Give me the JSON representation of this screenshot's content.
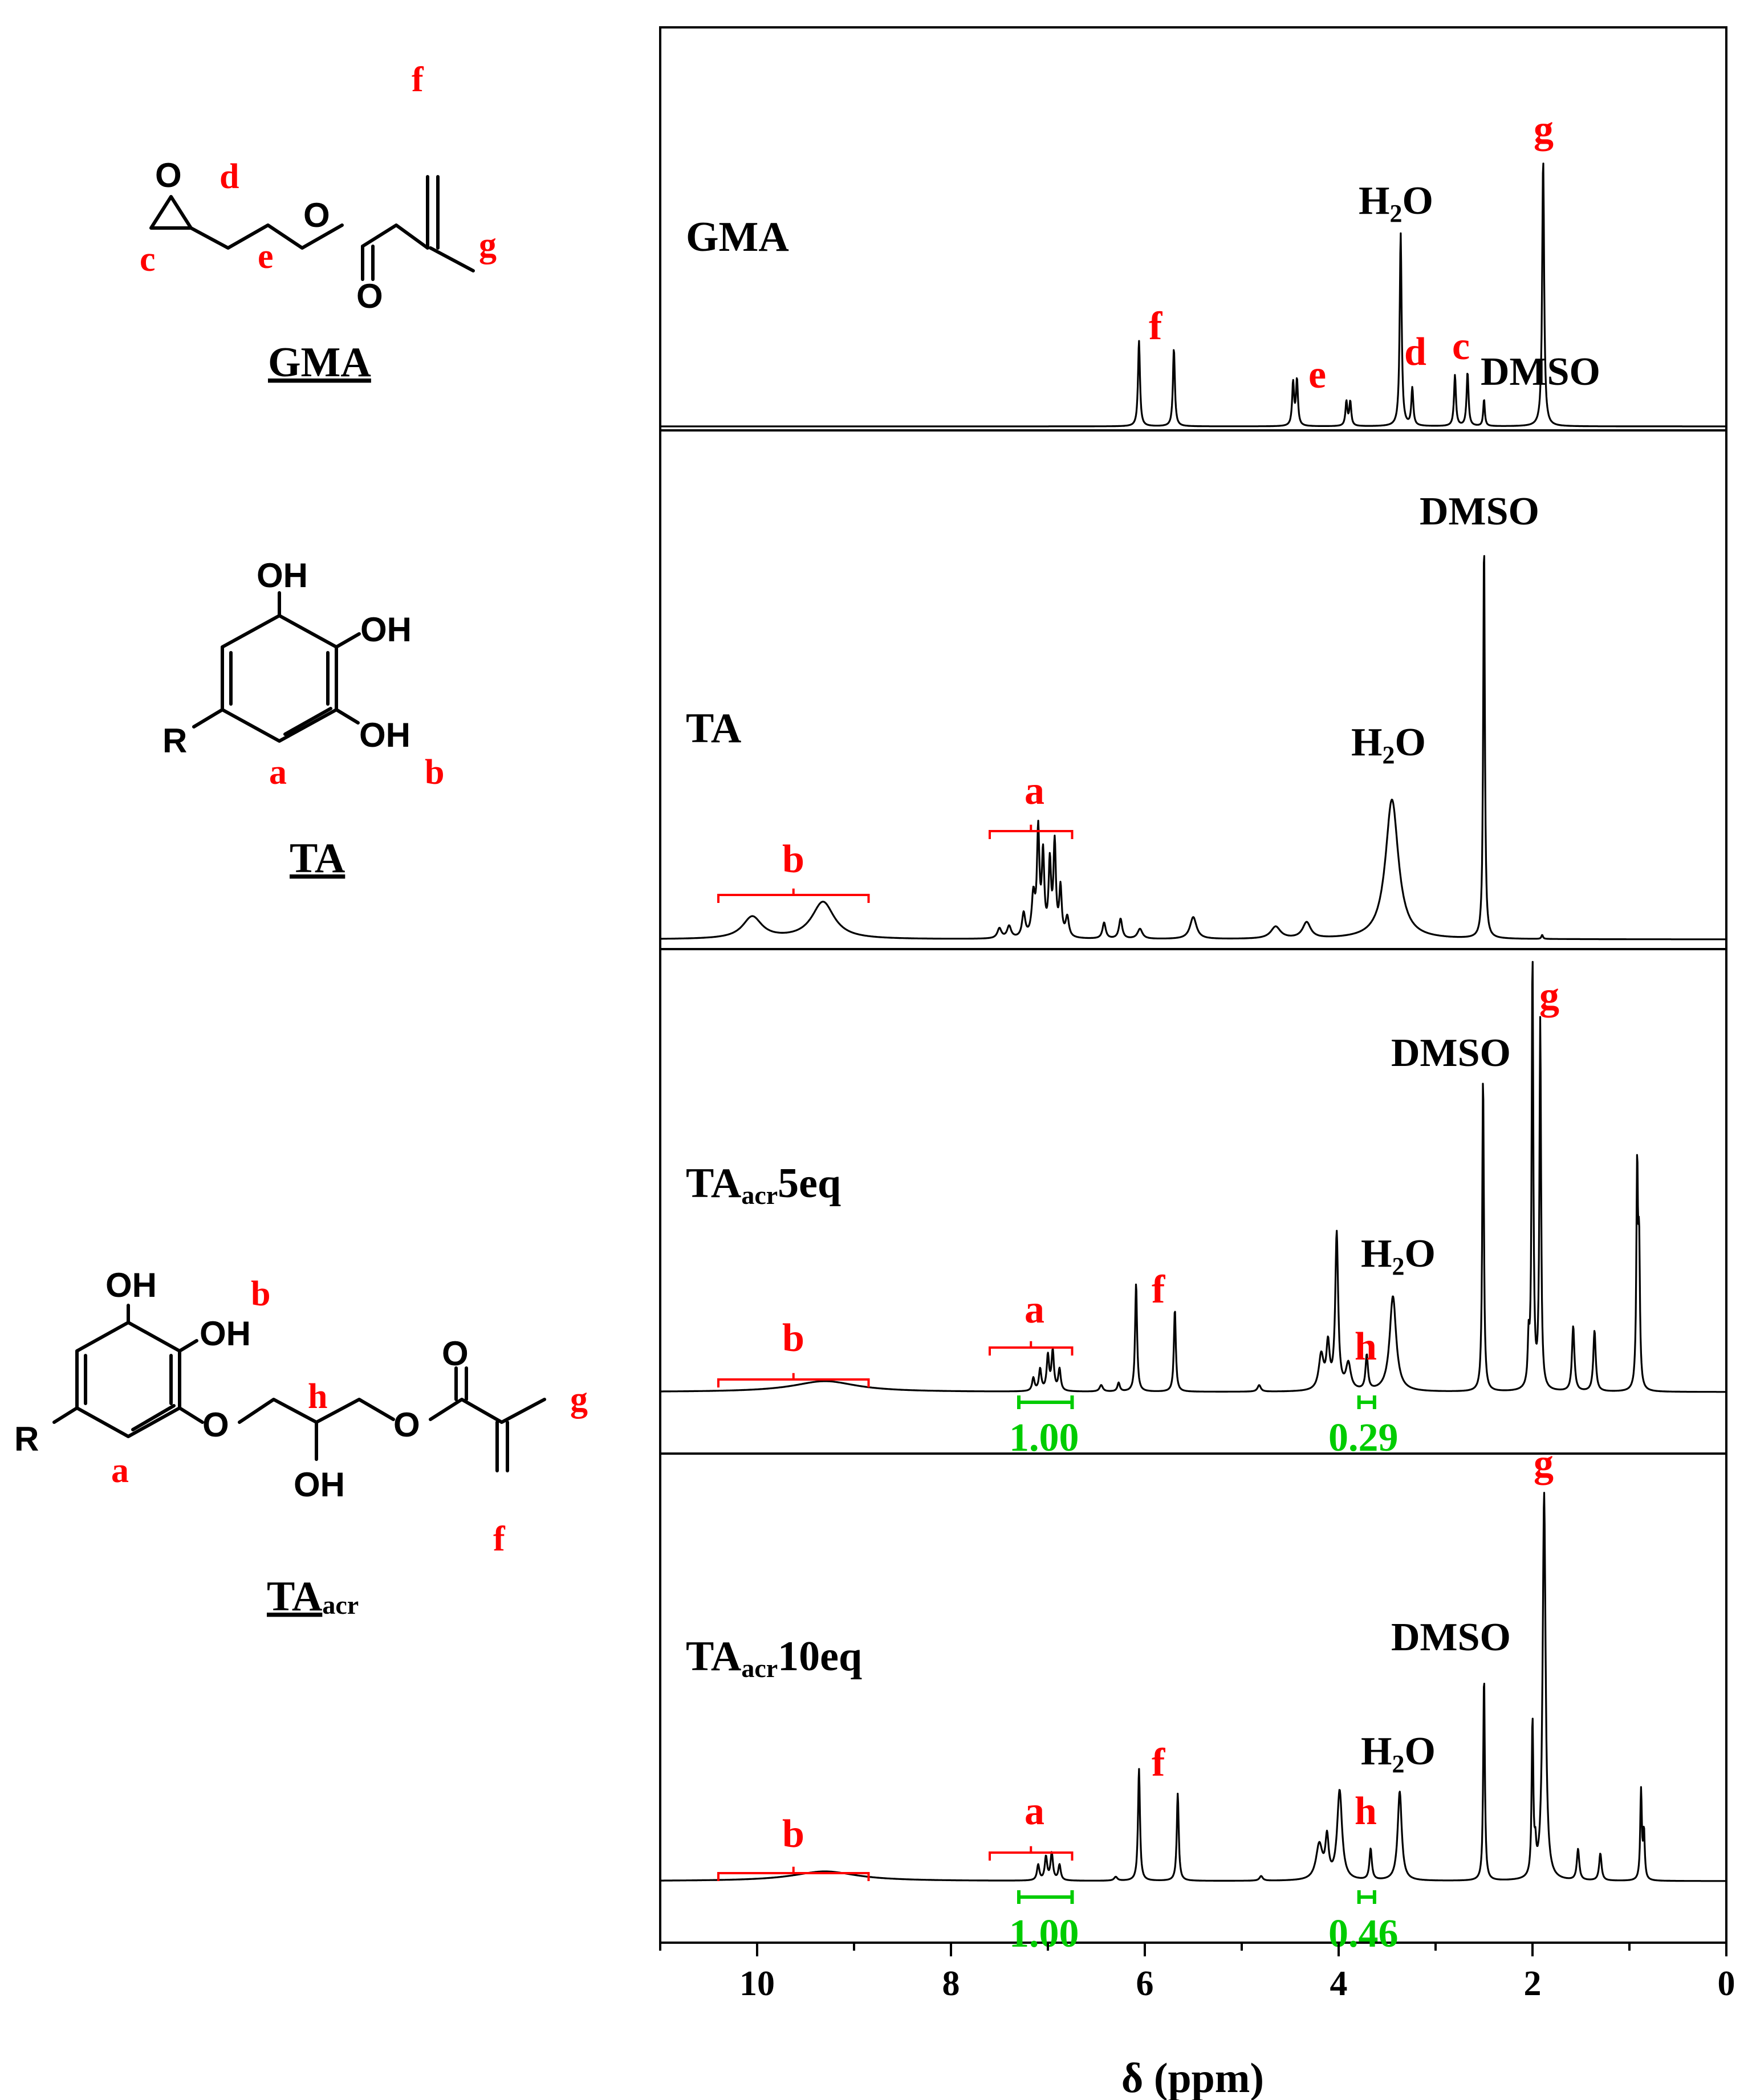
{
  "molecules": {
    "gma": {
      "name": "GMA",
      "atoms": {
        "o_ring": "O",
        "o_ester": "O",
        "o_carbonyl": "O"
      },
      "letters": {
        "c": "c",
        "d": "d",
        "e": "e",
        "f": "f",
        "g": "g"
      }
    },
    "ta": {
      "name": "TA",
      "atoms": {
        "oh1": "OH",
        "oh2": "OH",
        "oh3": "OH",
        "r": "R"
      },
      "letters": {
        "a": "a",
        "b": "b"
      }
    },
    "taacr": {
      "name": "TA",
      "name_sub": "acr",
      "atoms": {
        "oh1": "OH",
        "oh2": "OH",
        "o_ether": "O",
        "oh_side": "OH",
        "o_ester": "O",
        "o_carbonyl": "O",
        "r": "R"
      },
      "letters": {
        "a": "a",
        "b": "b",
        "h": "h",
        "g": "g",
        "f": "f"
      }
    }
  },
  "chart_data": {
    "type": "line",
    "xlabel": "δ (ppm)",
    "xlim": [
      11,
      0
    ],
    "x_ticks": [
      "10",
      "8",
      "6",
      "4",
      "2",
      "0"
    ],
    "x_tick_values": [
      10,
      8,
      6,
      4,
      2,
      0
    ],
    "panels": [
      {
        "name": "GMA",
        "peaks": [
          {
            "ppm": 6.06,
            "height": 0.32,
            "width": 0.012
          },
          {
            "ppm": 5.7,
            "height": 0.29,
            "width": 0.012
          },
          {
            "ppm": 4.47,
            "height": 0.16,
            "width": 0.012
          },
          {
            "ppm": 4.43,
            "height": 0.17,
            "width": 0.012
          },
          {
            "ppm": 3.92,
            "height": 0.09,
            "width": 0.012
          },
          {
            "ppm": 3.88,
            "height": 0.09,
            "width": 0.012
          },
          {
            "ppm": 3.36,
            "height": 0.72,
            "width": 0.012
          },
          {
            "ppm": 3.24,
            "height": 0.14,
            "width": 0.012
          },
          {
            "ppm": 2.8,
            "height": 0.19,
            "width": 0.012
          },
          {
            "ppm": 2.67,
            "height": 0.2,
            "width": 0.012
          },
          {
            "ppm": 2.5,
            "height": 0.1,
            "width": 0.01
          },
          {
            "ppm": 1.89,
            "height": 1.0,
            "width": 0.012
          }
        ],
        "labels": [
          {
            "text": "f",
            "ppm": 5.88
          },
          {
            "text": "e",
            "ppm": 4.17
          },
          {
            "text": "d",
            "ppm": 3.28
          },
          {
            "text": "c",
            "ppm": 2.84
          },
          {
            "text": "DMSO",
            "ppm": 1.85
          },
          {
            "text": "H",
            "sub": "2",
            "after": "O",
            "ppm": 3.36
          },
          {
            "text": "g",
            "ppm": 1.88
          }
        ]
      },
      {
        "name": "TA",
        "peaks": [
          {
            "ppm": 10.05,
            "height": 0.055,
            "width": 0.12
          },
          {
            "ppm": 9.32,
            "height": 0.093,
            "width": 0.14
          },
          {
            "ppm": 7.5,
            "height": 0.025,
            "width": 0.025
          },
          {
            "ppm": 7.4,
            "height": 0.03,
            "width": 0.025
          },
          {
            "ppm": 7.25,
            "height": 0.06,
            "width": 0.02
          },
          {
            "ppm": 7.15,
            "height": 0.1,
            "width": 0.02
          },
          {
            "ppm": 7.1,
            "height": 0.26,
            "width": 0.015
          },
          {
            "ppm": 7.05,
            "height": 0.2,
            "width": 0.015
          },
          {
            "ppm": 6.98,
            "height": 0.18,
            "width": 0.015
          },
          {
            "ppm": 6.93,
            "height": 0.23,
            "width": 0.015
          },
          {
            "ppm": 6.87,
            "height": 0.12,
            "width": 0.015
          },
          {
            "ppm": 6.8,
            "height": 0.05,
            "width": 0.02
          },
          {
            "ppm": 6.42,
            "height": 0.04,
            "width": 0.02
          },
          {
            "ppm": 6.25,
            "height": 0.05,
            "width": 0.02
          },
          {
            "ppm": 6.05,
            "height": 0.025,
            "width": 0.03
          },
          {
            "ppm": 5.5,
            "height": 0.055,
            "width": 0.04
          },
          {
            "ppm": 4.65,
            "height": 0.03,
            "width": 0.06
          },
          {
            "ppm": 4.33,
            "height": 0.04,
            "width": 0.05
          },
          {
            "ppm": 3.45,
            "height": 0.35,
            "width": 0.08
          },
          {
            "ppm": 2.5,
            "height": 1.0,
            "width": 0.01
          },
          {
            "ppm": 1.9,
            "height": 0.01,
            "width": 0.01
          }
        ],
        "labels": [
          {
            "text": "TA",
            "kind": "name"
          },
          {
            "text": "b",
            "ppm": 9.6
          },
          {
            "text": "a",
            "ppm": 7.2
          },
          {
            "text": "H",
            "sub": "2",
            "after": "O",
            "ppm": 3.45
          },
          {
            "text": "DMSO",
            "ppm": 2.5
          }
        ]
      },
      {
        "name": "TA",
        "name_sub": "acr",
        "name_suffix": "5eq",
        "peaks": [
          {
            "ppm": 9.3,
            "height": 0.025,
            "width": 0.4
          },
          {
            "ppm": 7.15,
            "height": 0.03,
            "width": 0.015
          },
          {
            "ppm": 7.08,
            "height": 0.05,
            "width": 0.015
          },
          {
            "ppm": 7.0,
            "height": 0.08,
            "width": 0.015
          },
          {
            "ppm": 6.95,
            "height": 0.09,
            "width": 0.015
          },
          {
            "ppm": 6.88,
            "height": 0.05,
            "width": 0.015
          },
          {
            "ppm": 6.45,
            "height": 0.015,
            "width": 0.02
          },
          {
            "ppm": 6.27,
            "height": 0.02,
            "width": 0.015
          },
          {
            "ppm": 6.09,
            "height": 0.25,
            "width": 0.012
          },
          {
            "ppm": 5.69,
            "height": 0.19,
            "width": 0.012
          },
          {
            "ppm": 4.82,
            "height": 0.015,
            "width": 0.02
          },
          {
            "ppm": 4.18,
            "height": 0.08,
            "width": 0.03
          },
          {
            "ppm": 4.11,
            "height": 0.1,
            "width": 0.02
          },
          {
            "ppm": 4.02,
            "height": 0.36,
            "width": 0.018
          },
          {
            "ppm": 3.9,
            "height": 0.06,
            "width": 0.03
          },
          {
            "ppm": 3.71,
            "height": 0.08,
            "width": 0.015
          },
          {
            "ppm": 3.44,
            "height": 0.22,
            "width": 0.04
          },
          {
            "ppm": 2.51,
            "height": 0.73,
            "width": 0.01
          },
          {
            "ppm": 2.04,
            "height": 0.1,
            "width": 0.01
          },
          {
            "ppm": 2.0,
            "height": 1.0,
            "width": 0.01
          },
          {
            "ppm": 1.92,
            "height": 0.85,
            "width": 0.01
          },
          {
            "ppm": 1.58,
            "height": 0.15,
            "width": 0.015
          },
          {
            "ppm": 1.36,
            "height": 0.14,
            "width": 0.015
          },
          {
            "ppm": 0.92,
            "height": 0.5,
            "width": 0.01
          },
          {
            "ppm": 0.9,
            "height": 0.3,
            "width": 0.01
          }
        ],
        "labels": [
          {
            "text": "b",
            "ppm": 9.6
          },
          {
            "text": "a",
            "ppm": 7.2
          },
          {
            "text": "f",
            "ppm": 5.85
          },
          {
            "text": "h",
            "ppm": 3.71
          },
          {
            "text": "H",
            "sub": "2",
            "after": "O",
            "ppm": 3.44
          },
          {
            "text": "DMSO",
            "ppm": 2.51
          },
          {
            "text": "g",
            "ppm": 1.82
          }
        ],
        "integrals": [
          {
            "value": "1.00",
            "from": 7.3,
            "to": 6.75
          },
          {
            "value": "0.29",
            "from": 3.79,
            "to": 3.63
          }
        ]
      },
      {
        "name": "TA",
        "name_sub": "acr",
        "name_suffix": "10eq",
        "peaks": [
          {
            "ppm": 9.3,
            "height": 0.025,
            "width": 0.4
          },
          {
            "ppm": 7.1,
            "height": 0.04,
            "width": 0.015
          },
          {
            "ppm": 7.02,
            "height": 0.06,
            "width": 0.015
          },
          {
            "ppm": 6.96,
            "height": 0.07,
            "width": 0.015
          },
          {
            "ppm": 6.88,
            "height": 0.04,
            "width": 0.015
          },
          {
            "ppm": 6.3,
            "height": 0.01,
            "width": 0.02
          },
          {
            "ppm": 6.06,
            "height": 0.29,
            "width": 0.012
          },
          {
            "ppm": 5.66,
            "height": 0.225,
            "width": 0.012
          },
          {
            "ppm": 4.8,
            "height": 0.012,
            "width": 0.02
          },
          {
            "ppm": 4.2,
            "height": 0.09,
            "width": 0.04
          },
          {
            "ppm": 4.12,
            "height": 0.1,
            "width": 0.02
          },
          {
            "ppm": 3.99,
            "height": 0.23,
            "width": 0.03
          },
          {
            "ppm": 3.67,
            "height": 0.08,
            "width": 0.015
          },
          {
            "ppm": 3.37,
            "height": 0.23,
            "width": 0.025
          },
          {
            "ppm": 2.5,
            "height": 0.53,
            "width": 0.01
          },
          {
            "ppm": 2.0,
            "height": 0.4,
            "width": 0.01
          },
          {
            "ppm": 1.97,
            "height": 0.06,
            "width": 0.01
          },
          {
            "ppm": 1.88,
            "height": 1.0,
            "width": 0.018
          },
          {
            "ppm": 1.53,
            "height": 0.08,
            "width": 0.015
          },
          {
            "ppm": 1.3,
            "height": 0.07,
            "width": 0.015
          },
          {
            "ppm": 0.88,
            "height": 0.23,
            "width": 0.01
          },
          {
            "ppm": 0.85,
            "height": 0.12,
            "width": 0.01
          }
        ],
        "labels": [
          {
            "text": "b",
            "ppm": 9.6
          },
          {
            "text": "a",
            "ppm": 7.2
          },
          {
            "text": "f",
            "ppm": 5.85
          },
          {
            "text": "h",
            "ppm": 3.71
          },
          {
            "text": "H",
            "sub": "2",
            "after": "O",
            "ppm": 3.44
          },
          {
            "text": "DMSO",
            "ppm": 2.4
          },
          {
            "text": "g",
            "ppm": 1.88
          }
        ],
        "integrals": [
          {
            "value": "1.00",
            "from": 7.3,
            "to": 6.75
          },
          {
            "value": "0.46",
            "from": 3.79,
            "to": 3.63
          }
        ]
      }
    ]
  }
}
